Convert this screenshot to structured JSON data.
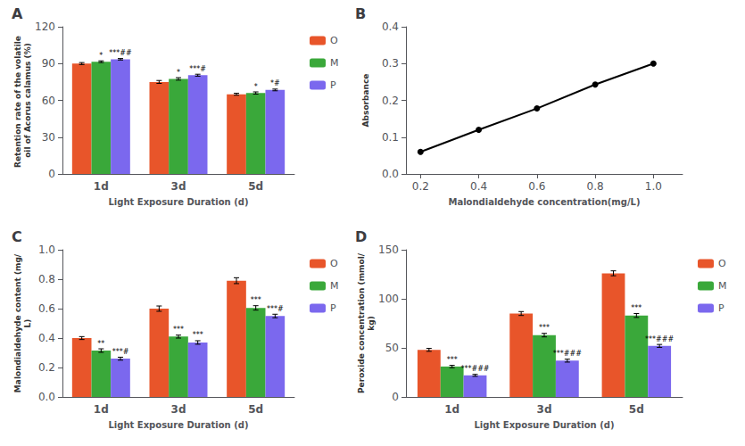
{
  "chart_data": [
    {
      "type": "bar",
      "title": "A",
      "categories": [
        "1d",
        "3d",
        "5d"
      ],
      "xlabel": "Light Exposure Duration (d)",
      "ylabel": "Retention rate of the volatile oil of Acorus calamus (%)",
      "ylim": [
        0,
        120
      ],
      "yticks": [
        0,
        30,
        60,
        90,
        120
      ],
      "grid": false,
      "legend": "right",
      "series": [
        {
          "name": "O",
          "color": "#E8552A",
          "values": [
            90.0,
            75.0,
            65.0
          ],
          "errors": [
            0.8,
            1.2,
            0.8
          ]
        },
        {
          "name": "M",
          "color": "#3AA83A",
          "values": [
            91.5,
            77.5,
            66.0
          ],
          "errors": [
            0.7,
            1.0,
            0.9
          ],
          "annotations": [
            "*",
            "*",
            "*"
          ]
        },
        {
          "name": "P",
          "color": "#7B68EE",
          "values": [
            93.5,
            80.5,
            68.5
          ],
          "errors": [
            0.6,
            0.8,
            0.7
          ],
          "annotations": [
            "***##",
            "***#",
            "*#"
          ]
        }
      ]
    },
    {
      "type": "line",
      "title": "B",
      "x": [
        0.2,
        0.4,
        0.6,
        0.8,
        1.0
      ],
      "values": [
        0.06,
        0.12,
        0.178,
        0.243,
        0.3
      ],
      "xlabel": "Malondialdehyde concentration(mg/L)",
      "ylabel": "Absorbance",
      "xlim": [
        0.15,
        1.1
      ],
      "xticks": [
        0.2,
        0.4,
        0.6,
        0.8,
        {
          "value": 1.0,
          "label": "1.0"
        }
      ],
      "ylim": [
        0.0,
        0.4
      ],
      "yticks": [
        {
          "value": 0.0,
          "label": "0.0"
        },
        0.1,
        0.2,
        0.3,
        0.4
      ],
      "grid": false,
      "color": "#000000",
      "marker": "circle",
      "line_style": "solid"
    },
    {
      "type": "bar",
      "title": "C",
      "categories": [
        "1d",
        "3d",
        "5d"
      ],
      "xlabel": "Light Exposure Duration (d)",
      "ylabel": "Malondialdehyde content (mg/L)",
      "ylim": [
        0.0,
        1.0
      ],
      "yticks": [
        {
          "value": 0.0,
          "label": "0.0"
        },
        0.2,
        0.4,
        0.6,
        0.8,
        {
          "value": 1.0,
          "label": "1.0"
        }
      ],
      "grid": false,
      "legend": "right",
      "series": [
        {
          "name": "O",
          "color": "#E8552A",
          "values": [
            0.4,
            0.6,
            0.79
          ],
          "errors": [
            0.01,
            0.018,
            0.02
          ]
        },
        {
          "name": "M",
          "color": "#3AA83A",
          "values": [
            0.315,
            0.41,
            0.605
          ],
          "errors": [
            0.012,
            0.01,
            0.015
          ],
          "annotations": [
            "**",
            "***",
            "***"
          ]
        },
        {
          "name": "P",
          "color": "#7B68EE",
          "values": [
            0.26,
            0.37,
            0.55
          ],
          "errors": [
            0.01,
            0.012,
            0.012
          ],
          "annotations": [
            "***#",
            "***",
            "***#"
          ]
        }
      ]
    },
    {
      "type": "bar",
      "title": "D",
      "categories": [
        "1d",
        "3d",
        "5d"
      ],
      "xlabel": "Light Exposure Duration (d)",
      "ylabel": "Peroxide concentration (mmol/kg)",
      "ylim": [
        0,
        150
      ],
      "yticks": [
        0,
        50,
        100,
        150
      ],
      "grid": false,
      "legend": "right",
      "series": [
        {
          "name": "O",
          "color": "#E8552A",
          "values": [
            48.0,
            85.0,
            126.0
          ],
          "errors": [
            1.5,
            2.0,
            2.5
          ]
        },
        {
          "name": "M",
          "color": "#3AA83A",
          "values": [
            31.0,
            63.0,
            83.0
          ],
          "errors": [
            1.2,
            1.8,
            2.0
          ],
          "annotations": [
            "***",
            "***",
            "***"
          ]
        },
        {
          "name": "P",
          "color": "#7B68EE",
          "values": [
            22.0,
            37.0,
            52.0
          ],
          "errors": [
            1.0,
            1.5,
            1.5
          ],
          "annotations": [
            "***###",
            "***###",
            "***###"
          ]
        }
      ]
    }
  ]
}
